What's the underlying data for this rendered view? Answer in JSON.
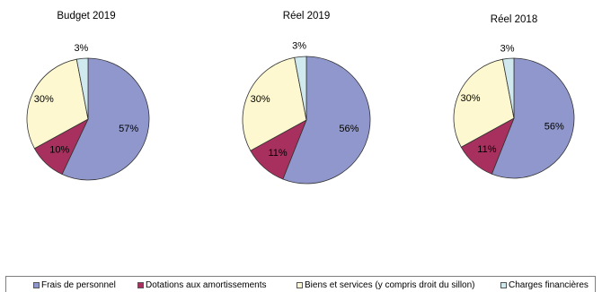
{
  "chart_data": [
    {
      "type": "pie",
      "title": "Budget 2019",
      "labels": [
        "Frais de personnel",
        "Dotations aux amortissements",
        "Biens et services (y compris droit du sillon)",
        "Charges financières"
      ],
      "values": [
        57,
        10,
        30,
        3
      ],
      "value_labels": [
        "57%",
        "10%",
        "30%",
        "3%"
      ],
      "colors": [
        "#8f97cc",
        "#a8305e",
        "#fdf8cf",
        "#cfe9ee"
      ]
    },
    {
      "type": "pie",
      "title": "Réel 2019",
      "labels": [
        "Frais de personnel",
        "Dotations aux amortissements",
        "Biens et services (y compris droit du sillon)",
        "Charges financières"
      ],
      "values": [
        56,
        11,
        30,
        3
      ],
      "value_labels": [
        "56%",
        "11%",
        "30%",
        "3%"
      ],
      "colors": [
        "#8f97cc",
        "#a8305e",
        "#fdf8cf",
        "#cfe9ee"
      ]
    },
    {
      "type": "pie",
      "title": "Réel 2018",
      "labels": [
        "Frais de personnel",
        "Dotations aux amortissements",
        "Biens et services (y compris droit du sillon)",
        "Charges financières"
      ],
      "values": [
        56,
        11,
        30,
        3
      ],
      "value_labels": [
        "56%",
        "11%",
        "30%",
        "3%"
      ],
      "colors": [
        "#8f97cc",
        "#a8305e",
        "#fdf8cf",
        "#cfe9ee"
      ]
    }
  ],
  "legend": {
    "placement": "bottom",
    "items": [
      {
        "label": "Frais de personnel",
        "color": "#8f97cc"
      },
      {
        "label": "Dotations aux amortissements",
        "color": "#a8305e"
      },
      {
        "label": "Biens et services (y compris droit du sillon)",
        "color": "#fdf8cf"
      },
      {
        "label": "Charges financières",
        "color": "#cfe9ee"
      }
    ]
  }
}
